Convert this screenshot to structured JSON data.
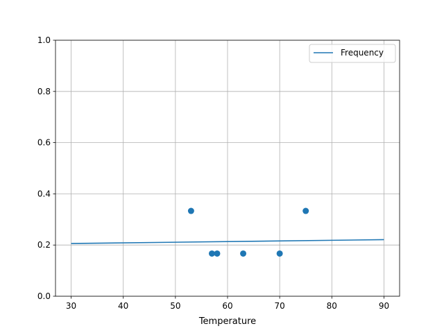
{
  "chart_data": {
    "type": "scatter",
    "title": "",
    "xlabel": "Temperature",
    "ylabel": "",
    "xlim": [
      27,
      93
    ],
    "ylim": [
      0,
      1
    ],
    "xticks": [
      30,
      40,
      50,
      60,
      70,
      80,
      90
    ],
    "yticks": [
      0.0,
      0.2,
      0.4,
      0.6,
      0.8,
      1.0
    ],
    "grid": true,
    "legend": {
      "placement": "top-right",
      "entries": [
        "Frequency"
      ]
    },
    "scatter": {
      "x": [
        53,
        57,
        58,
        63,
        70,
        75
      ],
      "y": [
        0.3333,
        0.1667,
        0.1667,
        0.1667,
        0.1667,
        0.3333
      ],
      "color": "#1f77b4"
    },
    "series": [
      {
        "name": "Frequency",
        "type": "line",
        "x": [
          30,
          90
        ],
        "y": [
          0.206,
          0.221
        ],
        "color": "#1f77b4"
      }
    ]
  }
}
